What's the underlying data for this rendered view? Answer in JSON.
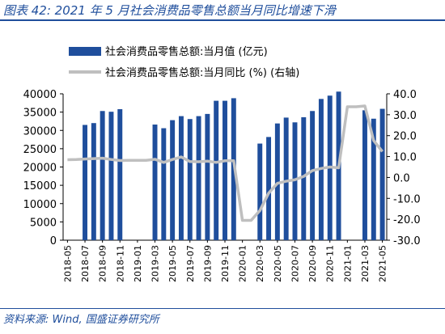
{
  "figure": {
    "title": "图表 42:  2021 年 5 月社会消费品零售总额当月同比增速下滑",
    "source": "资料来源: Wind, 国盛证券研究所"
  },
  "colors": {
    "bar": "#1f4e9c",
    "line": "#bfbfbf",
    "accent": "#1f4e9c"
  },
  "chart_data": {
    "type": "bar",
    "categories": [
      "2018-05",
      "2018-06",
      "2018-07",
      "2018-08",
      "2018-09",
      "2018-10",
      "2018-11",
      "2018-12",
      "2019-01",
      "2019-02",
      "2019-03",
      "2019-04",
      "2019-05",
      "2019-06",
      "2019-07",
      "2019-08",
      "2019-09",
      "2019-10",
      "2019-11",
      "2019-12",
      "2020-01",
      "2020-02",
      "2020-03",
      "2020-04",
      "2020-05",
      "2020-06",
      "2020-07",
      "2020-08",
      "2020-09",
      "2020-10",
      "2020-11",
      "2020-12",
      "2021-01",
      "2021-02",
      "2021-03",
      "2021-04",
      "2021-05"
    ],
    "x_tick_labels": [
      "2018-05",
      "2018-07",
      "2018-09",
      "2018-11",
      "2019-01",
      "2019-03",
      "2019-05",
      "2019-07",
      "2019-09",
      "2019-11",
      "2020-01",
      "2020-03",
      "2020-05",
      "2020-07",
      "2020-09",
      "2020-11",
      "2021-01",
      "2021-03",
      "2021-05"
    ],
    "series": [
      {
        "name": "社会消费品零售总额:当月值 (亿元)",
        "axis": "left",
        "render": "bar",
        "values": [
          null,
          null,
          31500,
          32000,
          35300,
          35100,
          35800,
          null,
          null,
          null,
          31600,
          30600,
          32800,
          33900,
          33100,
          33900,
          34500,
          38100,
          38100,
          38800,
          null,
          null,
          26400,
          28200,
          31900,
          33500,
          32200,
          33600,
          35300,
          38600,
          39500,
          40600,
          null,
          null,
          35500,
          33200,
          35900
        ]
      },
      {
        "name": "社会消费品零售总额:当月同比 (%) (右轴)",
        "axis": "right",
        "render": "line",
        "values": [
          8.5,
          8.6,
          8.8,
          9.0,
          9.2,
          8.6,
          8.1,
          8.2,
          8.2,
          8.2,
          8.7,
          7.2,
          8.6,
          9.8,
          7.6,
          7.5,
          7.8,
          7.2,
          8.0,
          8.0,
          -20.5,
          -20.5,
          -15.8,
          -7.5,
          -2.8,
          -1.8,
          -1.1,
          0.5,
          3.3,
          4.3,
          5.0,
          4.6,
          33.8,
          33.8,
          34.2,
          17.7,
          12.4
        ]
      }
    ],
    "y_left": {
      "ylim": [
        0,
        40000
      ],
      "ticks": [
        0,
        5000,
        10000,
        15000,
        20000,
        25000,
        30000,
        35000,
        40000
      ]
    },
    "y_right": {
      "ylim": [
        -30,
        40
      ],
      "ticks": [
        -30.0,
        -20.0,
        -10.0,
        0.0,
        10.0,
        20.0,
        30.0,
        40.0
      ]
    },
    "legend": {
      "placement": "top"
    },
    "grid": false
  }
}
